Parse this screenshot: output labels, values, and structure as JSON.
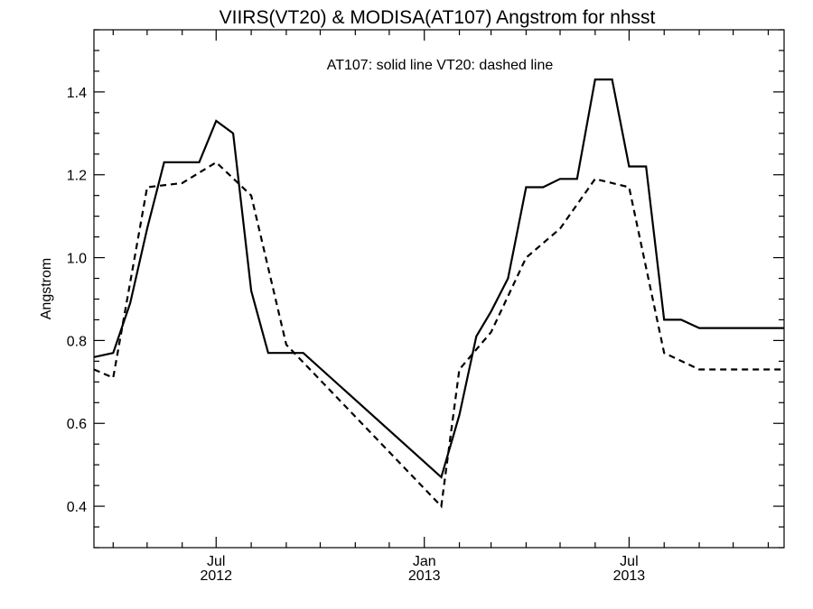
{
  "chart_data": {
    "type": "line",
    "title": "VIIRS(VT20) & MODISA(AT107)  Angstrom for nhsst",
    "annotation": "AT107: solid line   VT20: dashed line",
    "ylabel": "Angstrom",
    "xlabel": "",
    "ylim": [
      0.3,
      1.55
    ],
    "xlim": [
      "2012-03-15",
      "2013-11-15"
    ],
    "y_ticks": [
      0.4,
      0.6,
      0.8,
      1.0,
      1.2,
      1.4
    ],
    "y_tick_labels": [
      "0.4",
      "0.6",
      "0.8",
      "1.0",
      "1.2",
      "1.4"
    ],
    "x_major_ticks": [
      {
        "date": "2012-07-01",
        "month": "Jul",
        "year": "2012"
      },
      {
        "date": "2013-01-01",
        "month": "Jan",
        "year": "2013"
      },
      {
        "date": "2013-07-01",
        "month": "Jul",
        "year": "2013"
      }
    ],
    "x_minor_ticks": [
      "2012-04-01",
      "2012-05-01",
      "2012-06-01",
      "2012-08-01",
      "2012-09-01",
      "2012-10-01",
      "2012-11-01",
      "2012-12-01",
      "2013-02-01",
      "2013-03-01",
      "2013-04-01",
      "2013-05-01",
      "2013-06-01",
      "2013-08-01",
      "2013-09-01",
      "2013-10-01",
      "2013-11-01"
    ],
    "grid": false,
    "series": [
      {
        "name": "AT107",
        "style": "solid",
        "color": "#000000",
        "x": [
          "2012-03-15",
          "2012-04-01",
          "2012-04-16",
          "2012-05-01",
          "2012-05-16",
          "2012-06-01",
          "2012-06-16",
          "2012-07-01",
          "2012-07-16",
          "2012-08-01",
          "2012-08-16",
          "2012-09-16",
          "2013-01-16",
          "2013-02-01",
          "2013-02-16",
          "2013-03-01",
          "2013-03-16",
          "2013-04-01",
          "2013-04-16",
          "2013-05-01",
          "2013-05-16",
          "2013-06-01",
          "2013-06-16",
          "2013-07-01",
          "2013-07-16",
          "2013-08-01",
          "2013-08-16",
          "2013-09-01",
          "2013-09-16",
          "2013-10-01",
          "2013-10-16",
          "2013-11-15"
        ],
        "values": [
          0.76,
          0.77,
          0.89,
          1.07,
          1.23,
          1.23,
          1.23,
          1.33,
          1.3,
          0.92,
          0.77,
          0.77,
          0.47,
          0.62,
          0.81,
          0.87,
          0.95,
          1.17,
          1.17,
          1.19,
          1.19,
          1.43,
          1.43,
          1.22,
          1.22,
          0.85,
          0.85,
          0.83,
          0.83,
          0.83,
          0.83,
          0.83
        ]
      },
      {
        "name": "VT20",
        "style": "dashed",
        "color": "#000000",
        "x": [
          "2012-03-15",
          "2012-04-01",
          "2012-05-01",
          "2012-06-01",
          "2012-07-01",
          "2012-08-01",
          "2012-09-01",
          "2013-01-16",
          "2013-02-01",
          "2013-03-01",
          "2013-04-01",
          "2013-05-01",
          "2013-06-01",
          "2013-07-01",
          "2013-08-01",
          "2013-09-01",
          "2013-10-01",
          "2013-11-15"
        ],
        "values": [
          0.73,
          0.71,
          1.17,
          1.18,
          1.23,
          1.15,
          0.79,
          0.4,
          0.73,
          0.82,
          1.0,
          1.07,
          1.19,
          1.17,
          0.77,
          0.73,
          0.73,
          0.73
        ]
      }
    ]
  }
}
